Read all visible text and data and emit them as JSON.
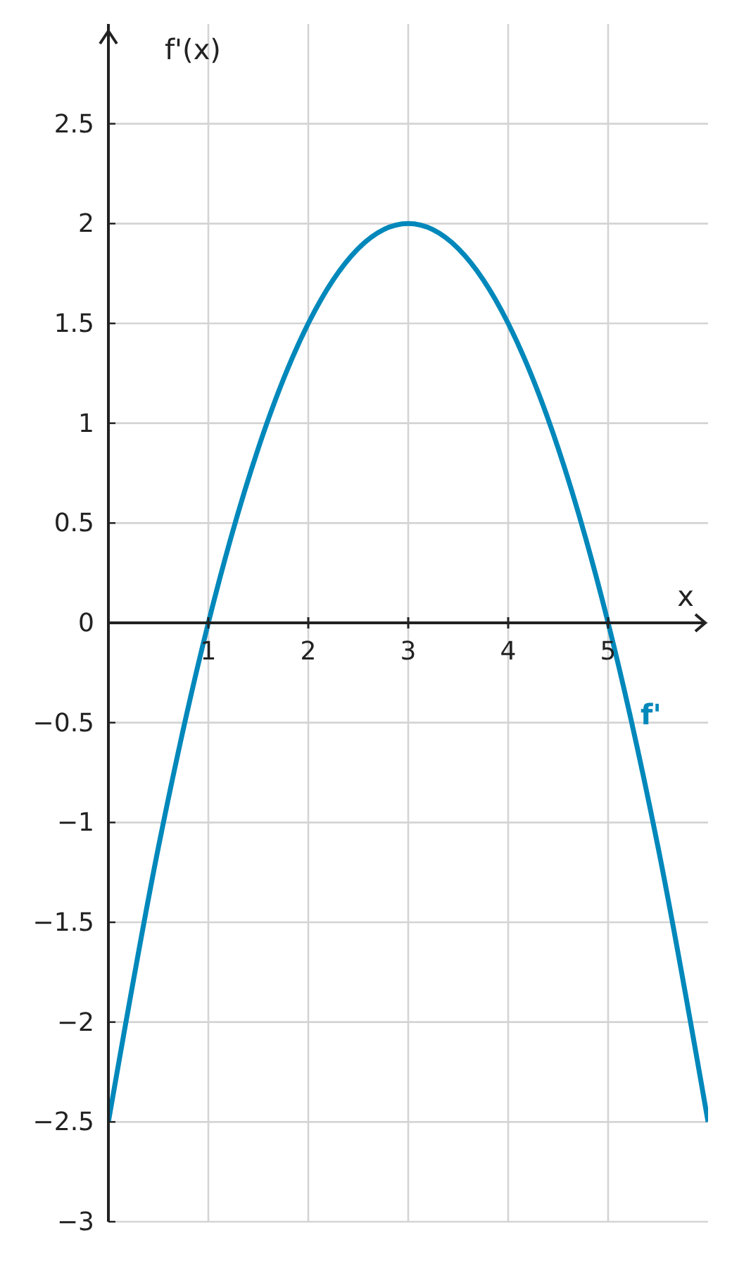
{
  "chart_data": {
    "type": "line",
    "xlabel": "x",
    "ylabel": "f'(x)",
    "x": [
      0,
      0.5,
      1,
      1.5,
      2,
      2.5,
      3,
      3.5,
      4,
      4.5,
      5,
      5.5,
      6
    ],
    "series": [
      {
        "name": "f'",
        "color": "#0088bb",
        "values": [
          -2.5,
          -1.125,
          0,
          0.875,
          1.5,
          1.875,
          2,
          1.875,
          1.5,
          0.875,
          0,
          -1.125,
          -2.5
        ]
      }
    ],
    "xlim": [
      0,
      6
    ],
    "ylim": [
      -3,
      3
    ],
    "xticks": [
      1,
      2,
      3,
      4,
      5
    ],
    "yticks": [
      {
        "value": -3,
        "label": "−3"
      },
      {
        "value": -2.5,
        "label": "−2.5"
      },
      {
        "value": -2,
        "label": "−2"
      },
      {
        "value": -1.5,
        "label": "−1.5"
      },
      {
        "value": -1,
        "label": "−1"
      },
      {
        "value": -0.5,
        "label": "−0.5"
      },
      {
        "value": 0,
        "label": "0"
      },
      0.5,
      1,
      1.5,
      2,
      2.5
    ],
    "grid": true,
    "legend": "right",
    "marker": "none",
    "line_style": "solid"
  }
}
